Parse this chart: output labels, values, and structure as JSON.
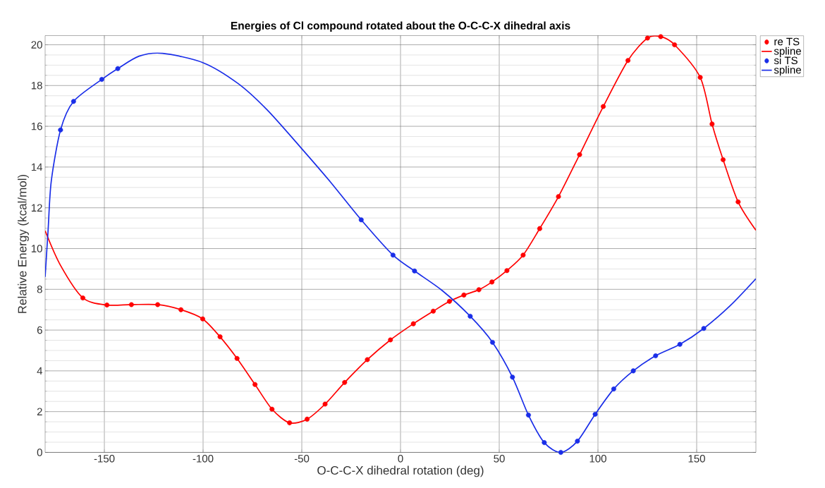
{
  "chart_data": {
    "type": "scatter",
    "title": "Energies of Cl compound rotated about the O-C-C-X dihedral axis",
    "xlabel": "O-C-C-X dihedral rotation (deg)",
    "ylabel": "Relative Energy (kcal/mol)",
    "xlim": [
      -180,
      180
    ],
    "ylim": [
      0,
      20.45
    ],
    "xticks": [
      -150,
      -100,
      -50,
      0,
      50,
      100,
      150
    ],
    "yticks": [
      0,
      2,
      4,
      6,
      8,
      10,
      12,
      14,
      16,
      18,
      20
    ],
    "grid": true,
    "legend": "top right",
    "series": [
      {
        "name": "re TS",
        "marker": "circle",
        "color": "#ff0000",
        "x": [
          -160.9,
          -148.7,
          -136.3,
          -123.0,
          -111.2,
          -100.2,
          -91.4,
          -82.8,
          -73.7,
          -65.1,
          -56.2,
          -47.3,
          -38.2,
          -28.3,
          -16.8,
          -5.1,
          6.5,
          16.6,
          24.8,
          32.1,
          39.7,
          46.3,
          53.9,
          62.1,
          70.5,
          80.0,
          90.7,
          102.7,
          115.2,
          125.1,
          131.8,
          138.8,
          151.8,
          157.8,
          163.4,
          171.0
        ],
        "values": [
          7.58,
          7.23,
          7.25,
          7.25,
          7.0,
          6.55,
          5.67,
          4.61,
          3.33,
          2.12,
          1.45,
          1.63,
          2.37,
          3.43,
          4.55,
          5.52,
          6.31,
          6.93,
          7.41,
          7.72,
          7.98,
          8.36,
          8.92,
          9.68,
          10.98,
          12.55,
          14.61,
          16.97,
          19.23,
          20.33,
          20.4,
          20.0,
          18.4,
          16.11,
          14.36,
          12.29
        ]
      },
      {
        "name": "spline",
        "type": "line",
        "color": "#ff0000",
        "x": [
          -180,
          -172.3,
          -160.9,
          -148.7,
          -136.3,
          -123.0,
          -111.2,
          -100.2,
          -91.4,
          -82.8,
          -73.7,
          -65.1,
          -56.2,
          -47.3,
          -38.2,
          -28.3,
          -16.8,
          -5.1,
          6.5,
          16.6,
          24.8,
          32.1,
          39.7,
          46.3,
          53.9,
          62.1,
          70.5,
          80.0,
          90.7,
          102.7,
          115.2,
          125.1,
          131.8,
          138.8,
          151.8,
          157.8,
          163.4,
          171.0,
          180
        ],
        "values": [
          10.87,
          9.19,
          7.58,
          7.23,
          7.25,
          7.25,
          7.0,
          6.55,
          5.67,
          4.61,
          3.33,
          2.12,
          1.45,
          1.63,
          2.37,
          3.43,
          4.55,
          5.52,
          6.31,
          6.93,
          7.41,
          7.72,
          7.98,
          8.36,
          8.92,
          9.68,
          10.98,
          12.55,
          14.61,
          16.97,
          19.23,
          20.33,
          20.4,
          20.0,
          18.4,
          16.11,
          14.36,
          12.29,
          10.9
        ]
      },
      {
        "name": "si TS",
        "marker": "circle",
        "color": "#1a2ee8",
        "x": [
          -172.2,
          -165.6,
          -151.3,
          -143.2,
          -19.9,
          -3.8,
          7.1,
          35.3,
          46.6,
          56.7,
          64.8,
          72.8,
          81.2,
          89.6,
          98.6,
          108.0,
          117.9,
          129.2,
          141.5,
          153.6
        ],
        "values": [
          15.82,
          17.22,
          18.3,
          18.83,
          11.41,
          9.68,
          8.9,
          6.68,
          5.4,
          3.69,
          1.83,
          0.48,
          0.0,
          0.55,
          1.87,
          3.11,
          4.0,
          4.74,
          5.3,
          6.08
        ]
      },
      {
        "name": "spline",
        "type": "line",
        "color": "#1a2ee8",
        "x": [
          -180,
          -178.5,
          -176.9,
          -172.2,
          -165.6,
          -151.3,
          -143.2,
          -132.4,
          -120.5,
          -100,
          -82.3,
          -67.6,
          -50.1,
          -35.6,
          -19.9,
          -3.8,
          7.1,
          21,
          35.3,
          46.6,
          56.7,
          64.8,
          72.8,
          81.2,
          89.6,
          98.6,
          108.0,
          117.9,
          129.2,
          141.5,
          153.6,
          167,
          180
        ],
        "values": [
          8.61,
          10.9,
          13.3,
          15.82,
          17.22,
          18.3,
          18.83,
          19.44,
          19.58,
          19.12,
          18.1,
          16.81,
          14.91,
          13.28,
          11.41,
          9.68,
          8.9,
          7.95,
          6.68,
          5.4,
          3.69,
          1.83,
          0.48,
          0.0,
          0.55,
          1.87,
          3.11,
          4.0,
          4.74,
          5.3,
          6.08,
          7.2,
          8.52
        ]
      }
    ]
  }
}
